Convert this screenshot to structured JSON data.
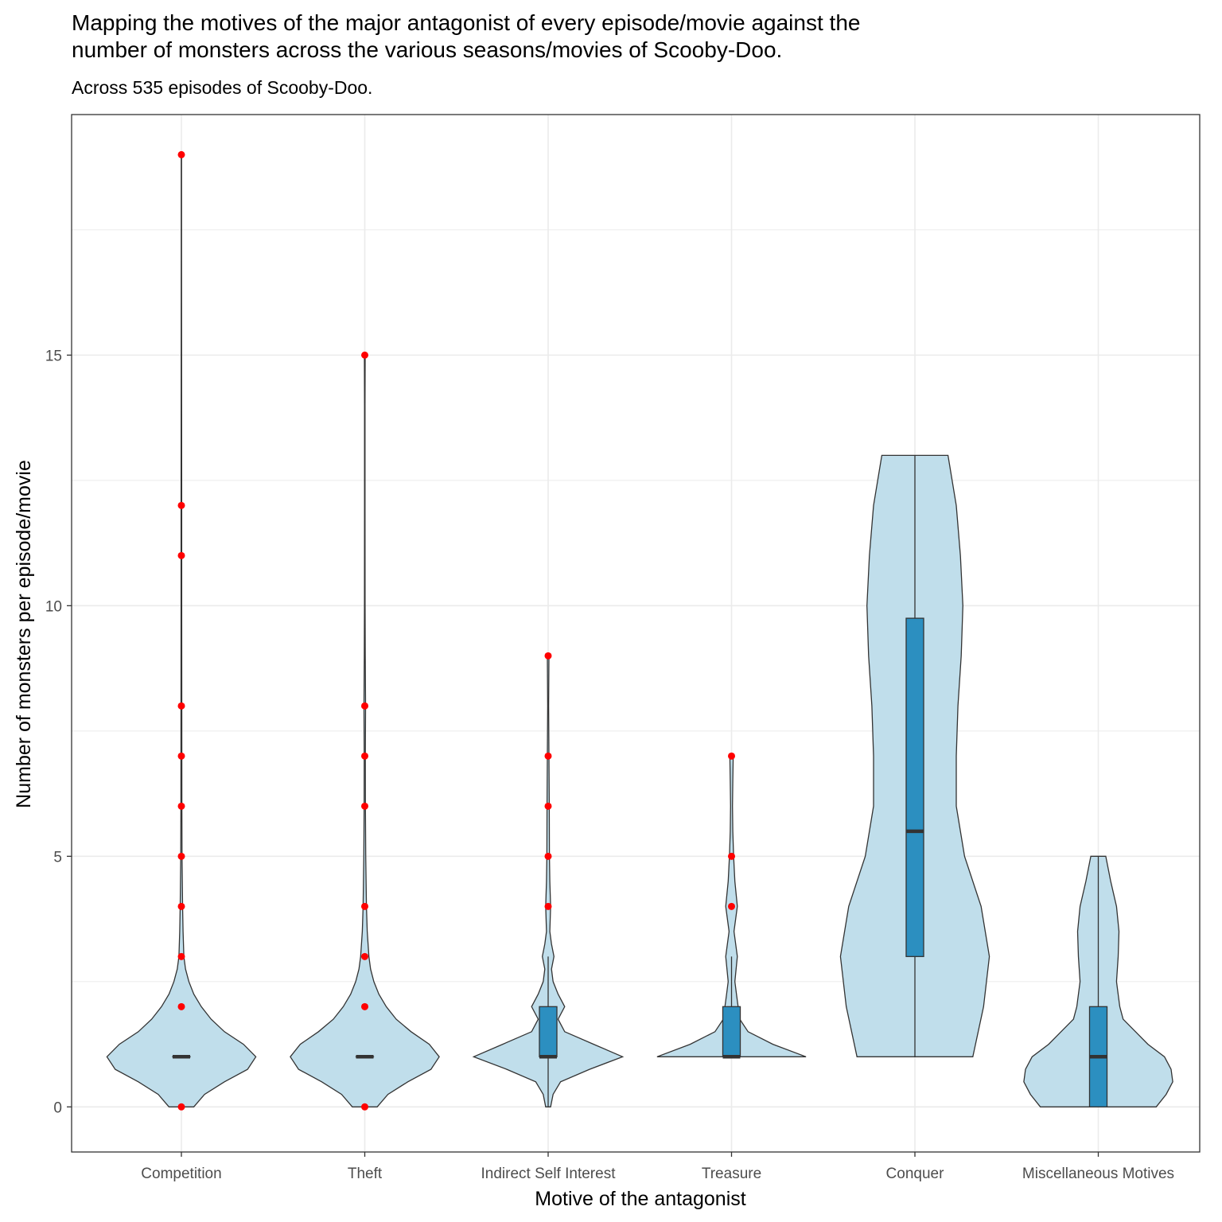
{
  "chart_data": {
    "type": "violin",
    "title_lines": [
      "Mapping the motives of the major antagonist of every episode/movie against the",
      "number of monsters across the various seasons/movies of Scooby-Doo."
    ],
    "subtitle": "Across 535 episodes of Scooby-Doo.",
    "xlabel": "Motive of the antagonist",
    "ylabel": "Number of monsters per episode/movie",
    "ylim": [
      -0.9,
      19.8
    ],
    "yticks": [
      0,
      5,
      10,
      15
    ],
    "grid": true,
    "legend": "none",
    "colors": {
      "violin_fill": "#c0deeb",
      "box_fill": "#2c8fc0",
      "outline": "#333333",
      "outlier": "#ff0000",
      "grid": "#ebebeb"
    },
    "categories": [
      "Competition",
      "Theft",
      "Indirect Self Interest",
      "Treasure",
      "Conquer",
      "Miscellaneous Motives"
    ],
    "series": [
      {
        "category": "Competition",
        "box": {
          "min": 1,
          "q1": 1,
          "median": 1,
          "q3": 1,
          "max": 1
        },
        "outliers": [
          0,
          2,
          3,
          4,
          5,
          6,
          7,
          8,
          11,
          12,
          19
        ],
        "density": [
          [
            0,
            0.15
          ],
          [
            0.25,
            0.28
          ],
          [
            0.5,
            0.52
          ],
          [
            0.75,
            0.8
          ],
          [
            1,
            0.9
          ],
          [
            1.25,
            0.75
          ],
          [
            1.5,
            0.52
          ],
          [
            1.75,
            0.36
          ],
          [
            2,
            0.24
          ],
          [
            2.25,
            0.15
          ],
          [
            2.5,
            0.09
          ],
          [
            2.75,
            0.05
          ],
          [
            3,
            0.03
          ],
          [
            3.5,
            0.02
          ],
          [
            4,
            0.014
          ],
          [
            5,
            0.008
          ],
          [
            6,
            0.006
          ],
          [
            8,
            0.005
          ],
          [
            10,
            0.004
          ],
          [
            12,
            0.004
          ],
          [
            14,
            0.003
          ],
          [
            17,
            0.002
          ],
          [
            19,
            0.002
          ]
        ]
      },
      {
        "category": "Theft",
        "box": {
          "min": 1,
          "q1": 1,
          "median": 1,
          "q3": 1,
          "max": 1
        },
        "outliers": [
          0,
          2,
          3,
          4,
          6,
          7,
          8,
          15
        ],
        "density": [
          [
            0,
            0.15
          ],
          [
            0.25,
            0.28
          ],
          [
            0.5,
            0.52
          ],
          [
            0.75,
            0.8
          ],
          [
            1,
            0.9
          ],
          [
            1.25,
            0.78
          ],
          [
            1.5,
            0.56
          ],
          [
            1.75,
            0.38
          ],
          [
            2,
            0.26
          ],
          [
            2.25,
            0.17
          ],
          [
            2.5,
            0.11
          ],
          [
            2.75,
            0.07
          ],
          [
            3,
            0.05
          ],
          [
            3.5,
            0.03
          ],
          [
            4,
            0.02
          ],
          [
            5,
            0.012
          ],
          [
            6,
            0.008
          ],
          [
            7,
            0.007
          ],
          [
            8,
            0.01
          ],
          [
            9,
            0.006
          ],
          [
            10,
            0.004
          ],
          [
            12,
            0.003
          ],
          [
            14,
            0.003
          ],
          [
            15,
            0.005
          ]
        ]
      },
      {
        "category": "Indirect Self Interest",
        "box": {
          "min": 0,
          "q1": 1,
          "median": 1,
          "q3": 2,
          "max": 3
        },
        "outliers": [
          4,
          5,
          6,
          7,
          9
        ],
        "density": [
          [
            0,
            0.03
          ],
          [
            0.25,
            0.06
          ],
          [
            0.5,
            0.15
          ],
          [
            0.75,
            0.5
          ],
          [
            1,
            0.9
          ],
          [
            1.25,
            0.55
          ],
          [
            1.5,
            0.2
          ],
          [
            1.75,
            0.12
          ],
          [
            2,
            0.2
          ],
          [
            2.25,
            0.12
          ],
          [
            2.5,
            0.06
          ],
          [
            2.75,
            0.04
          ],
          [
            3,
            0.07
          ],
          [
            3.25,
            0.04
          ],
          [
            3.5,
            0.02
          ],
          [
            4,
            0.03
          ],
          [
            4.5,
            0.02
          ],
          [
            5,
            0.015
          ],
          [
            6,
            0.013
          ],
          [
            7,
            0.01
          ],
          [
            8,
            0.006
          ],
          [
            9,
            0.01
          ]
        ]
      },
      {
        "category": "Treasure",
        "box": {
          "min": 1,
          "q1": 1,
          "median": 1,
          "q3": 2,
          "max": 3
        },
        "outliers": [
          4,
          5,
          7
        ],
        "density": [
          [
            1,
            0.9
          ],
          [
            1.25,
            0.5
          ],
          [
            1.5,
            0.2
          ],
          [
            1.75,
            0.1
          ],
          [
            2,
            0.08
          ],
          [
            2.25,
            0.06
          ],
          [
            2.5,
            0.04
          ],
          [
            3,
            0.07
          ],
          [
            3.5,
            0.03
          ],
          [
            4,
            0.07
          ],
          [
            4.5,
            0.04
          ],
          [
            5,
            0.025
          ],
          [
            5.5,
            0.015
          ],
          [
            6,
            0.012
          ],
          [
            6.5,
            0.015
          ],
          [
            7,
            0.02
          ]
        ]
      },
      {
        "category": "Conquer",
        "box": {
          "min": 1,
          "q1": 3,
          "median": 5.5,
          "q3": 9.75,
          "max": 13
        },
        "outliers": [],
        "density": [
          [
            1,
            0.7
          ],
          [
            2,
            0.83
          ],
          [
            3,
            0.9
          ],
          [
            4,
            0.8
          ],
          [
            5,
            0.6
          ],
          [
            6,
            0.5
          ],
          [
            7,
            0.5
          ],
          [
            8,
            0.52
          ],
          [
            9,
            0.56
          ],
          [
            10,
            0.58
          ],
          [
            11,
            0.55
          ],
          [
            12,
            0.5
          ],
          [
            13,
            0.4
          ]
        ]
      },
      {
        "category": "Miscellaneous Motives",
        "box": {
          "min": 0,
          "q1": 0,
          "median": 1,
          "q3": 2,
          "max": 5
        },
        "outliers": [],
        "density": [
          [
            0,
            0.7
          ],
          [
            0.25,
            0.82
          ],
          [
            0.5,
            0.9
          ],
          [
            0.75,
            0.88
          ],
          [
            1,
            0.8
          ],
          [
            1.25,
            0.6
          ],
          [
            1.5,
            0.45
          ],
          [
            1.75,
            0.3
          ],
          [
            2,
            0.26
          ],
          [
            2.5,
            0.22
          ],
          [
            3,
            0.24
          ],
          [
            3.5,
            0.25
          ],
          [
            4,
            0.22
          ],
          [
            4.5,
            0.15
          ],
          [
            5,
            0.09
          ]
        ]
      }
    ]
  }
}
